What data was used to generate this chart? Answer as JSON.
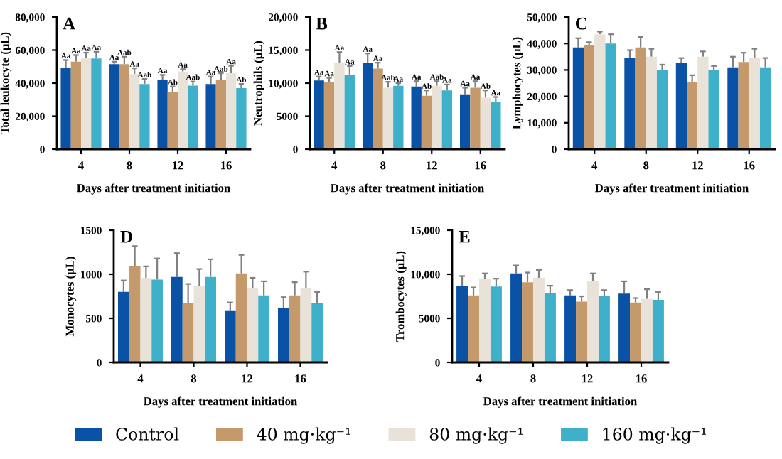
{
  "chart_data": [
    {
      "type": "bar",
      "title": "A",
      "xlabel": "Days after treatment initiation",
      "ylabel": "Total leukocyte (µL)",
      "categories": [
        "4",
        "8",
        "12",
        "16"
      ],
      "ylim": [
        0,
        80000
      ],
      "yticks": [
        0,
        {
          "value": 20000,
          "label": "20,000"
        },
        {
          "value": 40000,
          "label": "40,000"
        },
        {
          "value": 60000,
          "label": "60,000"
        },
        {
          "value": 80000,
          "label": "80,000"
        }
      ],
      "legend": "bottom",
      "series": [
        {
          "name": "Control",
          "color": "#0a52a5",
          "values": [
            49500,
            51500,
            42000,
            39500
          ],
          "errors": [
            [
              49500,
              54000
            ],
            [
              51500,
              53000
            ],
            [
              42000,
              45000
            ],
            [
              39500,
              44000
            ]
          ],
          "value_labels": [
            "Aa",
            "Aa",
            "Aa",
            "Aa"
          ]
        },
        {
          "name": "40 mg·kg⁻¹",
          "color": "#c49a6c",
          "values": [
            53000,
            51500,
            34500,
            42000
          ],
          "errors": [
            [
              53000,
              57000
            ],
            [
              51500,
              56000
            ],
            [
              34500,
              38000
            ],
            [
              42000,
              46000
            ]
          ],
          "value_labels": [
            "Aa",
            "Aab",
            "Ab",
            "Aab"
          ]
        },
        {
          "name": "80 mg·kg⁻¹",
          "color": "#e8e2d8",
          "values": [
            55000,
            45500,
            47000,
            46000
          ],
          "errors": [
            [
              55000,
              58500
            ],
            [
              45500,
              49000
            ],
            [
              47000,
              48500
            ],
            [
              46000,
              50500
            ]
          ],
          "value_labels": [
            "Aa",
            "Aa",
            "Aa",
            "Aa"
          ]
        },
        {
          "name": "160 mg·kg⁻¹",
          "color": "#3fb0c9",
          "values": [
            55000,
            39500,
            38500,
            37000
          ],
          "errors": [
            [
              55000,
              59000
            ],
            [
              39500,
              42500
            ],
            [
              38500,
              41000
            ],
            [
              37000,
              39500
            ]
          ],
          "value_labels": [
            "Aa",
            "Aab",
            "Aab",
            "Ab"
          ]
        }
      ]
    },
    {
      "type": "bar",
      "title": "B",
      "xlabel": "Days after treatment initiation",
      "ylabel": "Neutrophils (µL)",
      "categories": [
        "4",
        "8",
        "12",
        "16"
      ],
      "ylim": [
        0,
        20000
      ],
      "yticks": [
        0,
        5000,
        {
          "value": 10000,
          "label": "10,000"
        },
        {
          "value": 15000,
          "label": "15,000"
        },
        {
          "value": 20000,
          "label": "20,000"
        }
      ],
      "series": [
        {
          "color": "#0a52a5",
          "values": [
            10400,
            13100,
            9500,
            8300
          ],
          "errors": [
            [
              10400,
              11000
            ],
            [
              13100,
              14500
            ],
            [
              9500,
              10300
            ],
            [
              8300,
              9300
            ]
          ],
          "value_labels": [
            "Aa",
            "Aa",
            "Aa",
            "Aa"
          ]
        },
        {
          "color": "#c49a6c",
          "values": [
            10200,
            12200,
            8100,
            9300
          ],
          "errors": [
            [
              10200,
              10800
            ],
            [
              12200,
              13100
            ],
            [
              8100,
              8900
            ],
            [
              9300,
              10300
            ]
          ],
          "value_labels": [
            "Aa",
            "Aa",
            "Ab",
            "Aa"
          ]
        },
        {
          "color": "#e8e2d8",
          "values": [
            13100,
            9300,
            9600,
            7800
          ],
          "errors": [
            [
              13100,
              14700
            ],
            [
              9300,
              10200
            ],
            [
              9600,
              10300
            ],
            [
              7800,
              8900
            ]
          ],
          "value_labels": [
            "Aa",
            "Aab",
            "Aab",
            "Ab"
          ]
        },
        {
          "color": "#3fb0c9",
          "values": [
            11300,
            9600,
            8900,
            7200
          ],
          "errors": [
            [
              11300,
              12600
            ],
            [
              9600,
              10000
            ],
            [
              8900,
              9800
            ],
            [
              7200,
              7900
            ]
          ],
          "value_labels": [
            "Aa",
            "Aa",
            "Aa",
            "Aa"
          ]
        }
      ]
    },
    {
      "type": "bar",
      "title": "C",
      "xlabel": "Days after treatment initiation",
      "ylabel": "Lymphocytes (µL)",
      "categories": [
        "4",
        "8",
        "12",
        "16"
      ],
      "ylim": [
        0,
        50000
      ],
      "yticks": [
        0,
        {
          "value": 10000,
          "label": "10,000"
        },
        {
          "value": 20000,
          "label": "20,000"
        },
        {
          "value": 30000,
          "label": "30,000"
        },
        {
          "value": 40000,
          "label": "40,000"
        },
        {
          "value": 50000,
          "label": "50,000"
        }
      ],
      "series": [
        {
          "color": "#0a52a5",
          "values": [
            38500,
            34500,
            32500,
            31000
          ],
          "errors": [
            [
              38500,
              42000
            ],
            [
              34500,
              37500
            ],
            [
              32500,
              34500
            ],
            [
              31000,
              35000
            ]
          ]
        },
        {
          "color": "#c49a6c",
          "values": [
            39500,
            38500,
            25500,
            33000
          ],
          "errors": [
            [
              39500,
              40500
            ],
            [
              38500,
              42500
            ],
            [
              25500,
              28000
            ],
            [
              33000,
              36500
            ]
          ]
        },
        {
          "color": "#e8e2d8",
          "values": [
            43500,
            35000,
            35000,
            34500
          ],
          "errors": [
            [
              43500,
              44500
            ],
            [
              35000,
              38000
            ],
            [
              35000,
              37000
            ],
            [
              34500,
              38000
            ]
          ]
        },
        {
          "color": "#3fb0c9",
          "values": [
            40000,
            30000,
            30000,
            31000
          ],
          "errors": [
            [
              40000,
              43500
            ],
            [
              30000,
              32000
            ],
            [
              30000,
              31500
            ],
            [
              31000,
              34500
            ]
          ]
        }
      ]
    },
    {
      "type": "bar",
      "title": "D",
      "xlabel": "Days after treatment initiation",
      "ylabel": "Monocytes (µL)",
      "categories": [
        "4",
        "8",
        "12",
        "16"
      ],
      "ylim": [
        0,
        1500
      ],
      "yticks": [
        0,
        500,
        1000,
        1500
      ],
      "series": [
        {
          "color": "#0a52a5",
          "values": [
            800,
            970,
            590,
            620
          ],
          "errors": [
            [
              800,
              930
            ],
            [
              970,
              1240
            ],
            [
              590,
              680
            ],
            [
              620,
              740
            ]
          ]
        },
        {
          "color": "#c49a6c",
          "values": [
            1090,
            670,
            1010,
            760
          ],
          "errors": [
            [
              1090,
              1320
            ],
            [
              670,
              890
            ],
            [
              1010,
              1220
            ],
            [
              760,
              910
            ]
          ]
        },
        {
          "color": "#e8e2d8",
          "values": [
            960,
            870,
            840,
            840
          ],
          "errors": [
            [
              960,
              1090
            ],
            [
              870,
              1060
            ],
            [
              840,
              960
            ],
            [
              840,
              1030
            ]
          ]
        },
        {
          "color": "#3fb0c9",
          "values": [
            940,
            970,
            760,
            670
          ],
          "errors": [
            [
              940,
              1180
            ],
            [
              970,
              1170
            ],
            [
              760,
              920
            ],
            [
              670,
              800
            ]
          ]
        }
      ]
    },
    {
      "type": "bar",
      "title": "E",
      "xlabel": "Days after treatment initiation",
      "ylabel": "Trombocytes (µL)",
      "categories": [
        "4",
        "8",
        "12",
        "16"
      ],
      "ylim": [
        0,
        15000
      ],
      "yticks": [
        0,
        5000,
        {
          "value": 10000,
          "label": "10,000"
        },
        {
          "value": 15000,
          "label": "15,000"
        }
      ],
      "series": [
        {
          "color": "#0a52a5",
          "values": [
            8700,
            10100,
            7600,
            7800
          ],
          "errors": [
            [
              8700,
              9800
            ],
            [
              10100,
              11000
            ],
            [
              7600,
              8200
            ],
            [
              7800,
              9200
            ]
          ]
        },
        {
          "color": "#c49a6c",
          "values": [
            7600,
            9100,
            6900,
            6800
          ],
          "errors": [
            [
              7600,
              8500
            ],
            [
              9100,
              10200
            ],
            [
              6900,
              7500
            ],
            [
              6800,
              7300
            ]
          ]
        },
        {
          "color": "#e8e2d8",
          "values": [
            9500,
            9600,
            9200,
            7200
          ],
          "errors": [
            [
              9500,
              10100
            ],
            [
              9600,
              10500
            ],
            [
              9200,
              10100
            ],
            [
              7200,
              8300
            ]
          ]
        },
        {
          "color": "#3fb0c9",
          "values": [
            8600,
            7900,
            7500,
            7100
          ],
          "errors": [
            [
              8600,
              9500
            ],
            [
              7900,
              8700
            ],
            [
              7500,
              8200
            ],
            [
              7100,
              8000
            ]
          ]
        }
      ]
    }
  ]
}
